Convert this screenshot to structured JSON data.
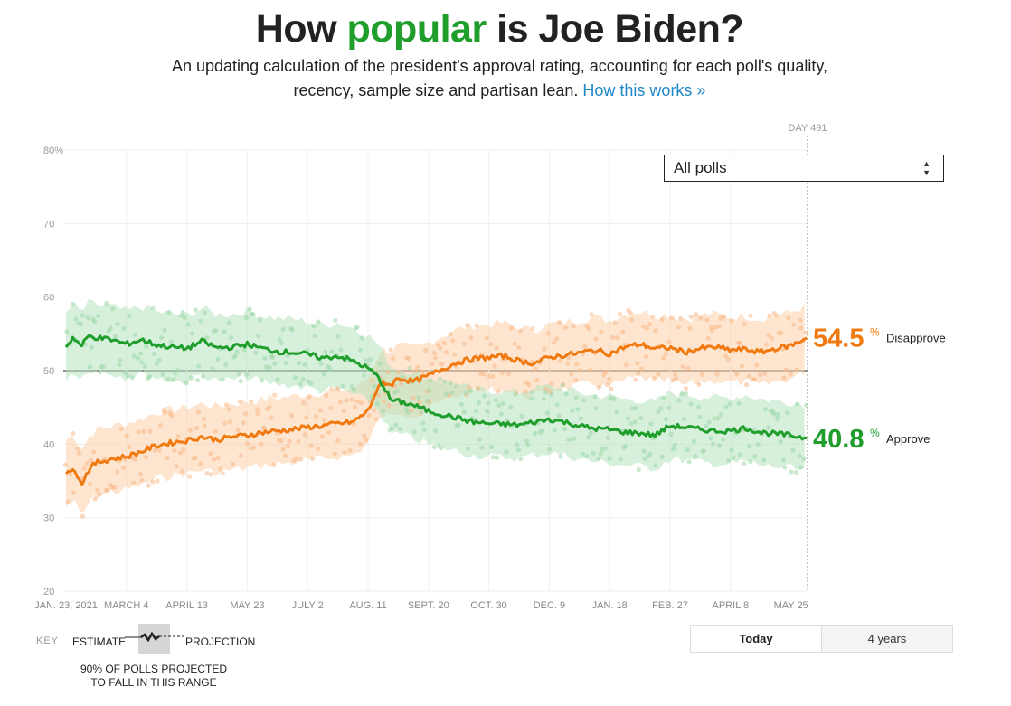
{
  "header": {
    "title_pre": "How ",
    "title_highlight": "popular",
    "title_post": " is Joe Biden?",
    "subtitle_line1": "An updating calculation of the president's approval rating, accounting for each poll's quality,",
    "subtitle_line2": "recency, sample size and partisan lean.",
    "subtitle_link": "How this works »"
  },
  "filter": {
    "selected": "All polls"
  },
  "chart_data": {
    "type": "line",
    "title": "",
    "xlabel": "",
    "ylabel": "",
    "ylim": [
      20,
      80
    ],
    "grid": true,
    "y_ticks": [
      20,
      30,
      40,
      50,
      60,
      70,
      80
    ],
    "y_tick_labels": [
      "20",
      "30",
      "40",
      "50",
      "60",
      "70",
      "80%"
    ],
    "x_ticks": [
      0,
      40,
      80,
      120,
      160,
      200,
      240,
      280,
      320,
      360,
      400,
      440,
      480
    ],
    "x_tick_labels": [
      "JAN. 23, 2021",
      "MARCH 4",
      "APRIL 13",
      "MAY 23",
      "JULY 2",
      "AUG. 11",
      "SEPT. 20",
      "OCT. 30",
      "DEC. 9",
      "JAN. 18",
      "FEB. 27",
      "APRIL 8",
      "MAY 25"
    ],
    "today_marker": {
      "day": 491,
      "label": "DAY 491"
    },
    "series": [
      {
        "name": "Disapprove",
        "color": "#f07a10",
        "final_value": "54.5",
        "x": [
          0,
          5,
          10,
          15,
          20,
          30,
          40,
          50,
          60,
          70,
          80,
          90,
          100,
          110,
          120,
          130,
          140,
          150,
          160,
          170,
          180,
          190,
          200,
          205,
          210,
          215,
          220,
          230,
          240,
          250,
          260,
          270,
          280,
          290,
          300,
          310,
          320,
          330,
          340,
          350,
          360,
          370,
          380,
          390,
          400,
          410,
          420,
          430,
          440,
          450,
          460,
          470,
          480,
          491
        ],
        "values": [
          36.0,
          37.0,
          34.5,
          36.5,
          37.5,
          38.0,
          38.3,
          39.0,
          39.8,
          40.2,
          40.5,
          41.0,
          40.6,
          41.0,
          41.2,
          41.6,
          41.8,
          42.0,
          42.3,
          42.5,
          42.8,
          43.0,
          44.5,
          47.0,
          48.5,
          48.0,
          49.0,
          48.5,
          49.3,
          50.3,
          51.2,
          51.6,
          51.8,
          52.0,
          51.3,
          51.0,
          51.8,
          52.1,
          52.4,
          52.8,
          52.3,
          53.2,
          53.6,
          53.0,
          53.1,
          52.5,
          53.0,
          53.2,
          52.8,
          52.9,
          52.5,
          53.0,
          53.4,
          54.5
        ]
      },
      {
        "name": "Approve",
        "color": "#1f9e2c",
        "final_value": "40.8",
        "x": [
          0,
          5,
          10,
          15,
          20,
          30,
          40,
          50,
          60,
          70,
          80,
          90,
          100,
          110,
          120,
          130,
          140,
          150,
          160,
          170,
          180,
          190,
          200,
          205,
          210,
          215,
          220,
          230,
          240,
          250,
          260,
          270,
          280,
          290,
          300,
          310,
          320,
          330,
          340,
          350,
          360,
          370,
          380,
          390,
          400,
          410,
          420,
          430,
          440,
          450,
          460,
          470,
          480,
          491
        ],
        "values": [
          53.2,
          54.6,
          53.3,
          54.7,
          54.5,
          54.2,
          53.6,
          54.2,
          53.5,
          53.2,
          53.0,
          54.0,
          53.1,
          53.2,
          53.6,
          53.0,
          52.6,
          52.5,
          52.2,
          51.7,
          52.0,
          51.3,
          50.3,
          49.5,
          48.0,
          46.0,
          45.8,
          45.3,
          44.5,
          44.0,
          43.5,
          43.0,
          42.8,
          42.7,
          42.6,
          43.0,
          43.4,
          43.0,
          42.5,
          42.1,
          42.0,
          41.6,
          41.5,
          41.2,
          42.5,
          42.3,
          42.0,
          41.8,
          41.8,
          42.2,
          41.6,
          41.4,
          41.2,
          40.8
        ]
      }
    ],
    "end_labels": {
      "percent_sign": "%"
    }
  },
  "key": {
    "label": "KEY",
    "estimate": "ESTIMATE",
    "projection": "PROJECTION",
    "note_line1": "90% OF POLLS PROJECTED",
    "note_line2": "TO FALL IN THIS RANGE"
  },
  "timeframe": {
    "today": "Today",
    "four_years": "4 years"
  },
  "colors": {
    "approve": "#1f9e2c",
    "disapprove": "#f07a10",
    "link": "#1e87c7"
  }
}
